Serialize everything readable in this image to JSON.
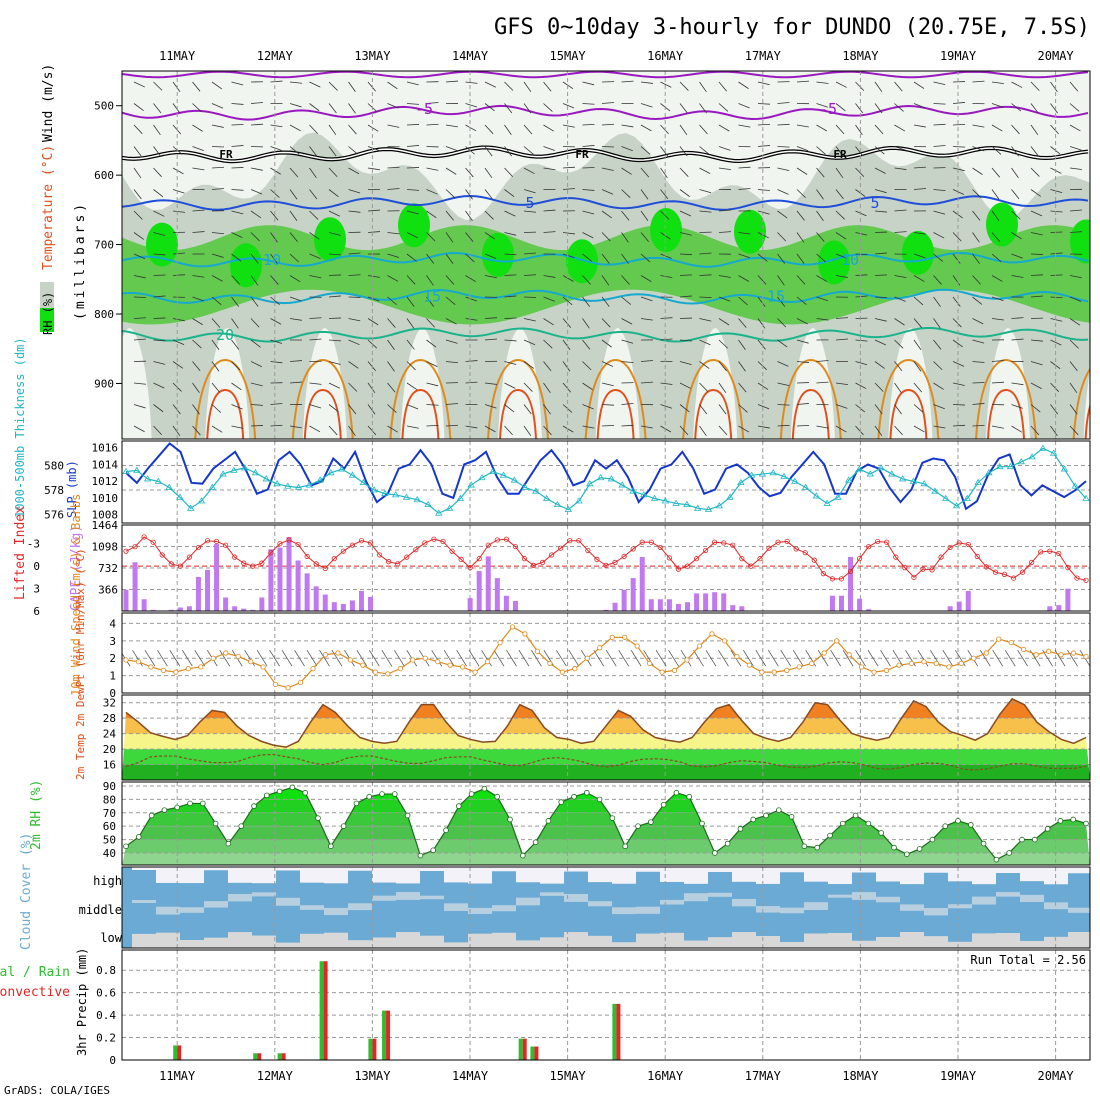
{
  "header": {
    "title": "GFS 0~10day 3-hourly for DUNDO (20.75E, 7.5S)",
    "credit": "GrADS: COLA/IGES"
  },
  "date_labels": [
    "11MAY",
    "12MAY",
    "13MAY",
    "14MAY",
    "15MAY",
    "16MAY",
    "17MAY",
    "18MAY",
    "19MAY",
    "20MAY"
  ],
  "colors": {
    "rh_light": "#f0f5f0",
    "rh_mid": "#c7d3c7",
    "rh_green": "#63c94f",
    "rh_bright": "#10e010",
    "temp_purple": "#9a18c0",
    "temp_blue": "#1f4fd8",
    "temp_cyan": "#16a9cf",
    "temp_teal": "#1ab38c",
    "temp_orange": "#e08a1c",
    "temp_red": "#e0501c",
    "slp": "#1537c9",
    "thickness": "#20b7c7",
    "lifted": "#e02626",
    "cape": "#c179f0",
    "wind10": "#e08a1c",
    "temp_fill_hot": "#f08020",
    "cloud": "#6aaad4",
    "precip_total": "#2ebd2e",
    "precip_conv": "#e02626"
  },
  "chart_data": [
    {
      "type": "heatmap",
      "panel": "upper-air",
      "ylabel_parts": {
        "rh": "RH (%)",
        "temp": "Temperature (°C)",
        "wind": "Wind (m/s)",
        "vert": "(millibars)"
      },
      "ylim": [
        980,
        450
      ],
      "yticks": [
        500,
        600,
        700,
        800,
        900
      ],
      "isotherm_labels": [
        "-5",
        "-5",
        "FR",
        "FR",
        "FR",
        "5",
        "5",
        "10",
        "10",
        "15",
        "15",
        "20"
      ],
      "isotherms": [
        {
          "name": "-5",
          "level": 510
        },
        {
          "name": "FR",
          "level": 570
        },
        {
          "name": "5",
          "level": 640
        },
        {
          "name": "10",
          "level": 722
        },
        {
          "name": "15",
          "level": 775
        },
        {
          "name": "20",
          "level": 830
        }
      ]
    },
    {
      "type": "line",
      "panel": "slp-thickness",
      "ylabel_left": "1000-500mb Thickness (dm)",
      "ylabel_right": "SLP (mb)",
      "yticks_left": [
        576,
        578,
        580
      ],
      "yticks_right": [
        1008,
        1010,
        1012,
        1014,
        1016
      ],
      "series": [
        {
          "name": "SLP (mb)",
          "ylim": [
            1007,
            1016.8
          ],
          "values": [
            1013,
            1011.8,
            1013.5,
            1015,
            1016.5,
            1015.5,
            1011.8,
            1011.7,
            1013.5,
            1014.5,
            1015.5,
            1013.3,
            1010.5,
            1011,
            1014.5,
            1015.5,
            1014,
            1011.5,
            1012,
            1014.7,
            1013.5,
            1015.5,
            1012,
            1009.5,
            1010.5,
            1013.5,
            1014,
            1015.7,
            1014,
            1010.5,
            1010,
            1014,
            1014.5,
            1015.5,
            1012.5,
            1010.5,
            1010.5,
            1012.5,
            1014.5,
            1015.7,
            1014,
            1011.5,
            1012,
            1014.5,
            1013.5,
            1014.5,
            1012.5,
            1009.5,
            1011,
            1013.5,
            1014,
            1015.5,
            1013.5,
            1010.5,
            1011,
            1013.5,
            1014,
            1013,
            1011.3,
            1010.2,
            1010.6,
            1012.5,
            1014,
            1015.5,
            1014,
            1010.5,
            1010.5,
            1013.2,
            1014,
            1013.5,
            1011.2,
            1009.5,
            1011,
            1014.2,
            1014.7,
            1014.5,
            1012.5,
            1008.7,
            1009.6,
            1012.7,
            1014.7,
            1015.2,
            1011.5,
            1010.3,
            1011.5,
            1010.8,
            1010.1,
            1010.9,
            1012
          ]
        },
        {
          "name": "Thickness (dm)",
          "ylim": [
            575.3,
            582
          ],
          "values": [
            579.5,
            579.6,
            578.9,
            578.7,
            578.2,
            577.4,
            576.5,
            577.1,
            578.2,
            579.3,
            579.6,
            579.8,
            579.4,
            578.9,
            578.5,
            578.3,
            578.2,
            578.4,
            578.8,
            579.4,
            579.7,
            579.2,
            578.6,
            578.0,
            577.7,
            577.6,
            577.4,
            577.2,
            576.8,
            576.1,
            576.5,
            577.3,
            578.4,
            579.0,
            579.5,
            579.2,
            578.8,
            578.2,
            577.9,
            577.3,
            576.8,
            576.4,
            577.1,
            578.5,
            579.0,
            578.9,
            578.4,
            577.9,
            577.6,
            577.3,
            577.1,
            576.9,
            576.8,
            576.5,
            576.4,
            576.7,
            577.4,
            578.6,
            579.2,
            579.3,
            579.4,
            579.1,
            578.7,
            578.2,
            577.5,
            576.9,
            577.4,
            578.8,
            579.7,
            579.3,
            579.8,
            579.3,
            578.9,
            578.7,
            578.5,
            577.9,
            577.3,
            576.7,
            577.3,
            578.6,
            579.4,
            579.9,
            579.9,
            580.3,
            580.7,
            581.4,
            581.0,
            579.7,
            578.3,
            577.3
          ]
        }
      ]
    },
    {
      "type": "bar",
      "panel": "cape-lifted",
      "ylabel_left": "Lifted Index",
      "ylabel_right": "CAPE (J/kg)",
      "yticks_li": [
        -3,
        0,
        3,
        6
      ],
      "yticks_cape": [
        366,
        732,
        1098,
        1464
      ],
      "series": [
        {
          "name": "CAPE",
          "ylim": [
            0,
            1464
          ],
          "values": [
            360,
            830,
            200,
            20,
            0,
            20,
            60,
            80,
            580,
            700,
            1140,
            230,
            80,
            40,
            20,
            230,
            1050,
            1080,
            1260,
            860,
            640,
            420,
            280,
            150,
            120,
            180,
            340,
            240,
            0,
            0,
            0,
            0,
            0,
            0,
            0,
            0,
            0,
            0,
            220,
            680,
            930,
            560,
            260,
            170,
            0,
            0,
            0,
            0,
            0,
            0,
            0,
            0,
            0,
            20,
            140,
            360,
            560,
            920,
            200,
            200,
            200,
            120,
            150,
            300,
            300,
            320,
            300,
            100,
            80,
            0,
            0,
            0,
            0,
            0,
            0,
            0,
            0,
            0,
            260,
            260,
            920,
            210,
            30,
            0,
            0,
            0,
            0,
            0,
            0,
            0,
            0,
            80,
            160,
            340,
            0,
            0,
            0,
            0,
            0,
            0,
            0,
            0,
            80,
            100,
            380,
            0,
            0
          ]
        },
        {
          "name": "Lifted Index",
          "ylim": [
            6,
            -5.5
          ],
          "values": [
            -2,
            -2.6,
            -3.9,
            -3.2,
            -1.5,
            -0.3,
            0,
            -1.2,
            -2.5,
            -3.4,
            -3.3,
            -2.8,
            -1.2,
            -0.4,
            0,
            -0.4,
            -1.8,
            -3,
            -3.5,
            -2.9,
            -1.3,
            -0.3,
            0.3,
            -1,
            -2,
            -2.8,
            -3.4,
            -3.1,
            -1.5,
            -0.6,
            -0.3,
            -1.2,
            -2.2,
            -3.1,
            -3.6,
            -3.3,
            -2,
            -0.9,
            0.2,
            -1,
            -2.8,
            -3.5,
            -3.6,
            -2.6,
            -1,
            -0.1,
            -0.5,
            -1.5,
            -2.4,
            -3.4,
            -3.4,
            -2.1,
            -0.9,
            -0.1,
            -0.5,
            -1.3,
            -2.3,
            -3.2,
            -3.2,
            -2.5,
            -1.1,
            0.4,
            0,
            -1,
            -2.1,
            -3.2,
            -3.1,
            -2.8,
            -1,
            0,
            -1,
            -2.4,
            -3.2,
            -3.3,
            -2.3,
            -1.8,
            -0.8,
            1,
            1.7,
            1.7,
            0.7,
            -1,
            -2.6,
            -3.3,
            -3.2,
            -1.2,
            0.2,
            1.5,
            0.4,
            0.5,
            -1.2,
            -2.5,
            -3.1,
            -2.9,
            -1.3,
            0.1,
            0.8,
            1.1,
            1.6,
            0.8,
            -0.5,
            -1.9,
            -2,
            -1.7,
            0.2,
            1.6,
            1.9
          ]
        }
      ]
    },
    {
      "type": "line",
      "panel": "wind10m",
      "ylabel": "10m Wind Speed (m/s) & Barbs",
      "ylim": [
        0,
        4.6
      ],
      "yticks": [
        0,
        1,
        2,
        3,
        4
      ],
      "series": [
        {
          "name": "10m Wind Speed",
          "values": [
            1.9,
            1.8,
            1.5,
            1.3,
            1.2,
            1.4,
            1.5,
            2.0,
            2.3,
            2.1,
            1.8,
            1.5,
            0.5,
            0.3,
            0.6,
            1.4,
            2.2,
            2.3,
            1.9,
            1.6,
            1.2,
            1.1,
            1.4,
            1.9,
            2.0,
            1.8,
            1.6,
            1.5,
            1.2,
            1.8,
            2.9,
            3.8,
            3.4,
            2.4,
            1.7,
            1.2,
            1.4,
            2.0,
            2.6,
            3.2,
            3.2,
            2.7,
            1.7,
            1.2,
            1.3,
            1.9,
            2.7,
            3.4,
            3.0,
            2.1,
            1.6,
            1.2,
            1.2,
            1.3,
            1.5,
            1.7,
            2.3,
            3.0,
            2.2,
            1.5,
            1.2,
            1.3,
            1.6,
            1.7,
            1.8,
            1.7,
            1.5,
            1.7,
            2.0,
            2.3,
            3.1,
            2.9,
            2.5,
            2.2,
            2.4,
            2.2,
            2.3,
            2.1
          ]
        }
      ]
    },
    {
      "type": "area",
      "panel": "temp2m",
      "ylabel": "2m Temp 2m DewPt (6hr Min/Max) (°C)",
      "ylim": [
        12,
        34
      ],
      "yticks": [
        16,
        20,
        24,
        28,
        32
      ],
      "series": [
        {
          "name": "2m Temp",
          "values": [
            29.5,
            27,
            24.2,
            23.3,
            22.5,
            23.5,
            27,
            30,
            29.5,
            26,
            23.5,
            22,
            21,
            20.5,
            22,
            27,
            31.5,
            29.5,
            26,
            23,
            22,
            21.5,
            22,
            27,
            31.5,
            31.5,
            27,
            23.5,
            22.5,
            21.8,
            22,
            26,
            31.5,
            30,
            25.5,
            23,
            22.5,
            21.5,
            22,
            26,
            30,
            28.5,
            25,
            23,
            22.3,
            21.8,
            23,
            27,
            30.5,
            31.5,
            27.5,
            24,
            22.8,
            22,
            23,
            27,
            32,
            31.5,
            27.5,
            24,
            23,
            22.3,
            23,
            28,
            32.5,
            31,
            27,
            24.5,
            23.5,
            22.3,
            24,
            29,
            33,
            31.5,
            27,
            24.5,
            22.5,
            21.5,
            23
          ]
        },
        {
          "name": "2m DewPt",
          "values": [
            15.5,
            16.5,
            18,
            18.2,
            18.2,
            17.5,
            17,
            16.5,
            16.5,
            16.7,
            17.8,
            18.5,
            18.6,
            18,
            17.5,
            16.5,
            16,
            16.5,
            17.7,
            18.2,
            18.2,
            17.5,
            16.8,
            16.3,
            16.3,
            17,
            17.8,
            18,
            18,
            17.2,
            16.5,
            15.8,
            15.7,
            16.5,
            17.5,
            17.8,
            17.4,
            16.8,
            15.8,
            15.4,
            15.8,
            16.8,
            17.4,
            17.5,
            17.3,
            16.7,
            15.6,
            15.4,
            15.7,
            16.5,
            17,
            16.8,
            16.5,
            15.8,
            15.3,
            15.2,
            15.5,
            16.4,
            16.7,
            16.5,
            15.9,
            15,
            14.8,
            15.2,
            16,
            16.4,
            16.3,
            15.8,
            14.8,
            14.6,
            14.9,
            15.6,
            16.2,
            16.2,
            15.6,
            15,
            15,
            15,
            15.5
          ]
        }
      ]
    },
    {
      "type": "area",
      "panel": "rh2m",
      "ylabel": "2m RH (%)",
      "ylim": [
        31,
        93
      ],
      "yticks": [
        40,
        50,
        60,
        70,
        80,
        90
      ],
      "series": [
        {
          "name": "2m RH",
          "values": [
            45,
            52,
            68,
            72,
            74,
            77,
            77,
            62,
            47,
            60,
            75,
            83,
            86,
            89,
            85,
            66,
            45,
            60,
            77,
            82,
            84,
            84,
            68,
            38,
            42,
            57,
            75,
            84,
            88,
            82,
            65,
            38,
            48,
            64,
            78,
            82,
            85,
            80,
            66,
            45,
            60,
            63,
            76,
            85,
            82,
            62,
            40,
            47,
            58,
            65,
            68,
            72,
            67,
            45,
            44,
            53,
            62,
            68,
            62,
            55,
            44,
            39,
            43,
            50,
            60,
            64,
            61,
            47,
            35,
            40,
            50,
            50,
            58,
            64,
            65,
            62
          ]
        }
      ]
    },
    {
      "type": "area",
      "panel": "cloud",
      "ylabel": "Cloud Cover (%)",
      "level_labels": [
        "high",
        "middle",
        "low"
      ]
    },
    {
      "type": "bar",
      "panel": "precip",
      "ylabel": "3hr Precip (mm)",
      "legend_labels": [
        "Total / Rain",
        "Convective"
      ],
      "run_total_label": "Run Total = 2.56",
      "ylim": [
        0,
        0.98
      ],
      "yticks": [
        "0",
        "0.2",
        "0.4",
        "0.6",
        "0.8"
      ],
      "series": [
        {
          "name": "Total / Rain",
          "points": [
            [
              0.36,
              0.13
            ],
            [
              1.18,
              0.06
            ],
            [
              1.43,
              0.06
            ],
            [
              1.86,
              0.88
            ],
            [
              2.36,
              0.19
            ],
            [
              2.5,
              0.44
            ],
            [
              3.9,
              0.19
            ],
            [
              4.02,
              0.12
            ],
            [
              4.86,
              0.5
            ]
          ]
        },
        {
          "name": "Convective",
          "points": [
            [
              0.36,
              0.13
            ],
            [
              1.18,
              0.06
            ],
            [
              1.43,
              0.06
            ],
            [
              1.86,
              0.88
            ],
            [
              2.36,
              0.19
            ],
            [
              2.5,
              0.44
            ],
            [
              3.9,
              0.19
            ],
            [
              4.02,
              0.12
            ],
            [
              4.86,
              0.5
            ]
          ]
        }
      ]
    }
  ]
}
